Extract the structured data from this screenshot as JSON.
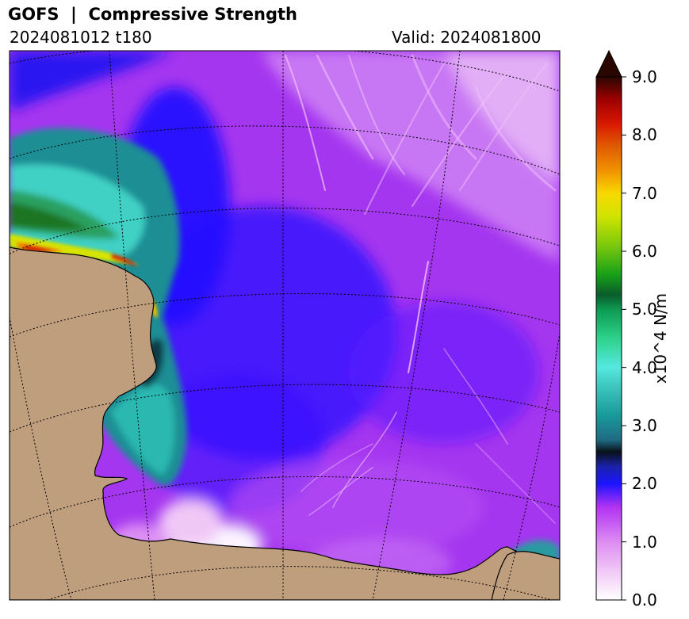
{
  "header": {
    "title": "GOFS  |  Compressive Strength",
    "run": "2024081012 t180",
    "valid": "Valid: 2024081800"
  },
  "colorbar": {
    "label": "x10^4 N/m",
    "ticks": [
      "0.0",
      "1.0",
      "2.0",
      "3.0",
      "4.0",
      "5.0",
      "6.0",
      "7.0",
      "8.0",
      "9.0"
    ],
    "stops": [
      {
        "v": 0.0,
        "color": "#ffffff"
      },
      {
        "v": 0.5,
        "color": "#f0c8f6"
      },
      {
        "v": 1.0,
        "color": "#dd8cf2"
      },
      {
        "v": 1.6,
        "color": "#b232f2"
      },
      {
        "v": 2.0,
        "color": "#1c14ff"
      },
      {
        "v": 2.3,
        "color": "#1a22a8"
      },
      {
        "v": 2.55,
        "color": "#081018"
      },
      {
        "v": 2.75,
        "color": "#1e6a82"
      },
      {
        "v": 3.2,
        "color": "#1a9c9c"
      },
      {
        "v": 3.7,
        "color": "#40c8c0"
      },
      {
        "v": 4.0,
        "color": "#55e8e0"
      },
      {
        "v": 4.5,
        "color": "#2ed28c"
      },
      {
        "v": 5.0,
        "color": "#0c9a50"
      },
      {
        "v": 5.25,
        "color": "#0a5c2c"
      },
      {
        "v": 5.6,
        "color": "#18a018"
      },
      {
        "v": 6.1,
        "color": "#7cc80c"
      },
      {
        "v": 6.6,
        "color": "#d0e400"
      },
      {
        "v": 7.0,
        "color": "#f8d800"
      },
      {
        "v": 7.4,
        "color": "#f09000"
      },
      {
        "v": 7.8,
        "color": "#e05c00"
      },
      {
        "v": 8.2,
        "color": "#d81800"
      },
      {
        "v": 8.6,
        "color": "#a00000"
      },
      {
        "v": 9.0,
        "color": "#2a0600"
      }
    ],
    "extend_color": "#2a0600"
  },
  "map": {
    "land_color": "#bf9e7e",
    "coast_color": "#000000",
    "grid_color": "#000000",
    "ocean_base_color": "#a536f0"
  }
}
